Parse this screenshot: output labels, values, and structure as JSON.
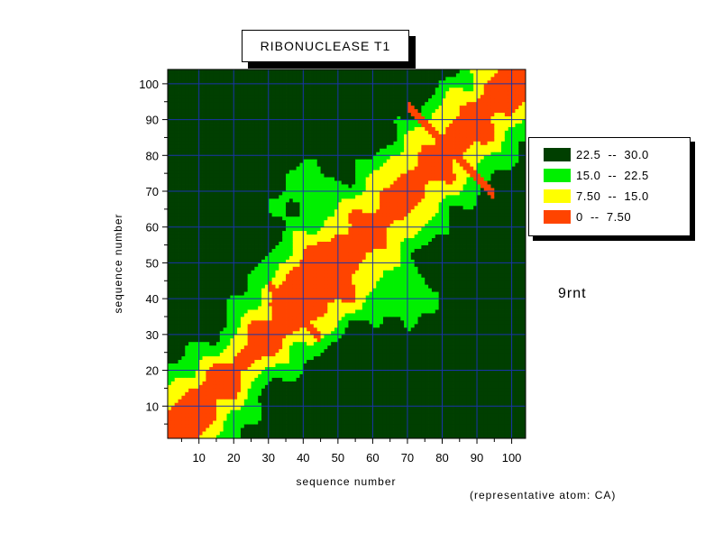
{
  "chart_data": {
    "type": "heatmap",
    "title": "RIBONUCLEASE T1",
    "xlabel": "sequence number",
    "ylabel": "sequence number",
    "xlim": [
      1,
      104
    ],
    "ylim": [
      1,
      104
    ],
    "x_ticks": [
      10,
      20,
      30,
      40,
      50,
      60,
      70,
      80,
      90,
      100
    ],
    "y_ticks": [
      10,
      20,
      30,
      40,
      50,
      60,
      70,
      80,
      90,
      100
    ],
    "grid": true,
    "legend_position": "right",
    "levels": [
      {
        "label": "22.5  --  30.0",
        "min": 22.5,
        "max": 30.0,
        "color": "#003f00"
      },
      {
        "label": "15.0  --  22.5",
        "min": 15.0,
        "max": 22.5,
        "color": "#00f000"
      },
      {
        "label": "7.50  --  15.0",
        "min": 7.5,
        "max": 15.0,
        "color": "#ffff00"
      },
      {
        "label": "0  --  7.50",
        "min": 0,
        "max": 7.5,
        "color": "#ff4400"
      }
    ],
    "annotations": [
      "9rnt",
      "(representative atom: CA)"
    ]
  }
}
